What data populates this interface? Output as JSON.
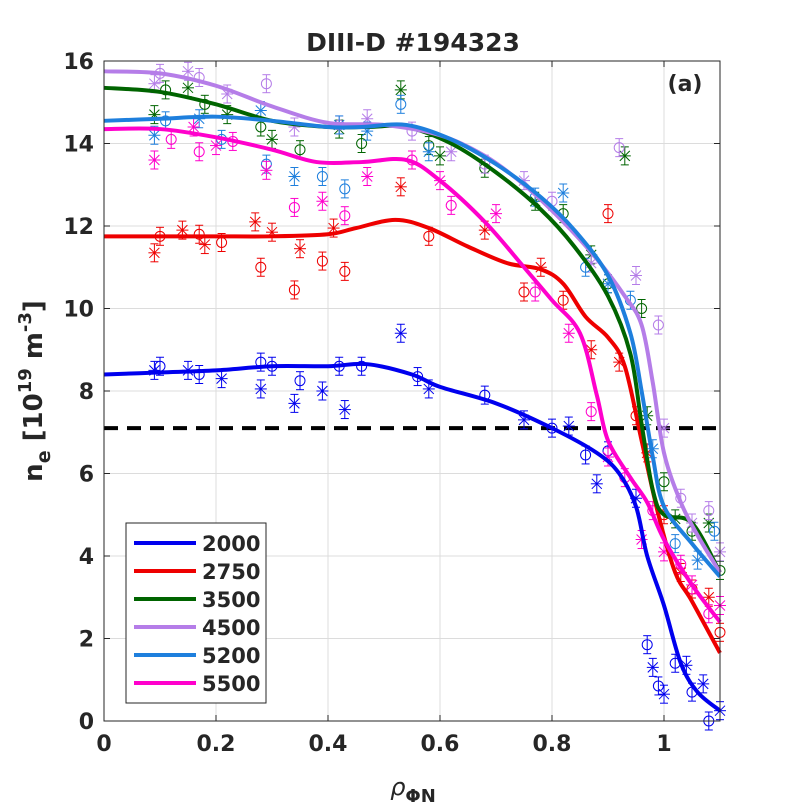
{
  "chart_data": {
    "type": "line",
    "title": "DIII-D #194323",
    "panel_label": "(a)",
    "xlabel": "ρ",
    "xlabel_sub": "ΦN",
    "ylabel": "n",
    "ylabel_sub": "e",
    "ylabel_units_pre": " [10",
    "ylabel_units_sup1": "19",
    "ylabel_units_mid": " m",
    "ylabel_units_sup2": "-3",
    "ylabel_units_post": "]",
    "xlim": [
      0,
      1.1
    ],
    "ylim": [
      0,
      16
    ],
    "xticks": [
      0,
      0.2,
      0.4,
      0.6,
      0.8,
      1
    ],
    "xtick_labels": [
      "0",
      "0.2",
      "0.4",
      "0.6",
      "0.8",
      "1"
    ],
    "yticks": [
      0,
      2,
      4,
      6,
      8,
      10,
      12,
      14,
      16
    ],
    "ytick_labels": [
      "0",
      "2",
      "4",
      "6",
      "8",
      "10",
      "12",
      "14",
      "16"
    ],
    "grid": true,
    "legend_position": "bottom-left",
    "reference_line": {
      "y": 7.1,
      "style": "dashed",
      "color": "#000000"
    },
    "series": [
      {
        "name": "2000",
        "color": "#0000ee",
        "x": [
          0,
          0.1,
          0.2,
          0.3,
          0.4,
          0.47,
          0.55,
          0.6,
          0.7,
          0.8,
          0.88,
          0.92,
          0.95,
          0.97,
          1.0,
          1.03,
          1.06,
          1.1
        ],
        "y": [
          8.4,
          8.45,
          8.5,
          8.6,
          8.6,
          8.65,
          8.4,
          8.1,
          7.7,
          7.1,
          6.5,
          6.0,
          5.2,
          4.0,
          2.8,
          1.4,
          0.7,
          0.25
        ],
        "points": [
          [
            0.09,
            8.5
          ],
          [
            0.1,
            8.6
          ],
          [
            0.15,
            8.5
          ],
          [
            0.17,
            8.4
          ],
          [
            0.21,
            8.3
          ],
          [
            0.28,
            8.7
          ],
          [
            0.28,
            8.05
          ],
          [
            0.3,
            8.6
          ],
          [
            0.34,
            7.7
          ],
          [
            0.35,
            8.25
          ],
          [
            0.39,
            8.0
          ],
          [
            0.42,
            8.6
          ],
          [
            0.43,
            7.55
          ],
          [
            0.46,
            8.6
          ],
          [
            0.53,
            9.4
          ],
          [
            0.56,
            8.35
          ],
          [
            0.58,
            8.05
          ],
          [
            0.68,
            7.9
          ],
          [
            0.75,
            7.3
          ],
          [
            0.8,
            7.1
          ],
          [
            0.83,
            7.15
          ],
          [
            0.86,
            6.45
          ],
          [
            0.88,
            5.75
          ],
          [
            0.9,
            6.55
          ],
          [
            0.95,
            5.4
          ],
          [
            0.97,
            1.85
          ],
          [
            0.98,
            1.3
          ],
          [
            0.99,
            0.85
          ],
          [
            1.0,
            0.65
          ],
          [
            1.02,
            1.4
          ],
          [
            1.04,
            1.35
          ],
          [
            1.05,
            0.7
          ],
          [
            1.07,
            0.9
          ],
          [
            1.08,
            0.0
          ],
          [
            1.1,
            0.25
          ]
        ]
      },
      {
        "name": "2750",
        "color": "#ee0000",
        "x": [
          0,
          0.1,
          0.2,
          0.3,
          0.4,
          0.45,
          0.52,
          0.58,
          0.65,
          0.72,
          0.78,
          0.82,
          0.86,
          0.9,
          0.93,
          0.96,
          0.99,
          1.02,
          1.05,
          1.1
        ],
        "y": [
          11.75,
          11.75,
          11.75,
          11.75,
          11.8,
          11.95,
          12.15,
          11.95,
          11.5,
          11.1,
          10.95,
          10.6,
          9.8,
          9.3,
          8.6,
          6.8,
          5.0,
          3.6,
          2.9,
          1.65
        ],
        "points": [
          [
            0.09,
            11.35
          ],
          [
            0.1,
            11.75
          ],
          [
            0.14,
            11.9
          ],
          [
            0.17,
            11.8
          ],
          [
            0.18,
            11.55
          ],
          [
            0.21,
            11.6
          ],
          [
            0.27,
            12.1
          ],
          [
            0.28,
            11.0
          ],
          [
            0.3,
            11.85
          ],
          [
            0.34,
            10.45
          ],
          [
            0.35,
            11.45
          ],
          [
            0.39,
            11.15
          ],
          [
            0.41,
            11.95
          ],
          [
            0.43,
            10.9
          ],
          [
            0.53,
            12.95
          ],
          [
            0.58,
            11.75
          ],
          [
            0.68,
            11.9
          ],
          [
            0.75,
            10.4
          ],
          [
            0.78,
            11.0
          ],
          [
            0.82,
            10.2
          ],
          [
            0.87,
            9.0
          ],
          [
            0.9,
            12.3
          ],
          [
            0.92,
            8.7
          ],
          [
            0.95,
            7.4
          ],
          [
            0.97,
            6.5
          ],
          [
            1.0,
            5.0
          ],
          [
            1.03,
            3.6
          ],
          [
            1.05,
            3.2
          ],
          [
            1.08,
            3.0
          ],
          [
            1.1,
            2.15
          ]
        ]
      },
      {
        "name": "3500",
        "color": "#006400",
        "x": [
          0,
          0.1,
          0.2,
          0.3,
          0.4,
          0.47,
          0.54,
          0.62,
          0.7,
          0.78,
          0.84,
          0.9,
          0.94,
          0.96,
          0.98,
          1.0,
          1.05,
          1.1
        ],
        "y": [
          15.35,
          15.25,
          14.95,
          14.55,
          14.4,
          14.4,
          14.4,
          14.0,
          13.3,
          12.4,
          11.5,
          10.3,
          8.9,
          7.2,
          5.6,
          5.0,
          4.8,
          3.6
        ],
        "points": [
          [
            0.09,
            14.7
          ],
          [
            0.11,
            15.3
          ],
          [
            0.15,
            15.35
          ],
          [
            0.18,
            14.95
          ],
          [
            0.22,
            14.7
          ],
          [
            0.28,
            14.4
          ],
          [
            0.3,
            14.1
          ],
          [
            0.35,
            13.85
          ],
          [
            0.42,
            14.35
          ],
          [
            0.46,
            14.0
          ],
          [
            0.53,
            15.3
          ],
          [
            0.58,
            13.95
          ],
          [
            0.6,
            13.7
          ],
          [
            0.68,
            13.4
          ],
          [
            0.77,
            12.6
          ],
          [
            0.82,
            12.3
          ],
          [
            0.87,
            11.3
          ],
          [
            0.9,
            10.6
          ],
          [
            0.93,
            13.7
          ],
          [
            0.96,
            10.0
          ],
          [
            0.97,
            7.4
          ],
          [
            1.0,
            5.8
          ],
          [
            1.02,
            4.9
          ],
          [
            1.05,
            4.6
          ],
          [
            1.08,
            4.8
          ],
          [
            1.1,
            3.65
          ]
        ]
      },
      {
        "name": "4500",
        "color": "#b57de8",
        "x": [
          0,
          0.1,
          0.2,
          0.3,
          0.4,
          0.5,
          0.6,
          0.68,
          0.75,
          0.82,
          0.88,
          0.93,
          0.96,
          0.98,
          1.0,
          1.03,
          1.06,
          1.1
        ],
        "y": [
          15.75,
          15.7,
          15.4,
          14.9,
          14.5,
          14.45,
          14.2,
          13.7,
          13.0,
          12.1,
          11.2,
          10.3,
          9.6,
          8.2,
          6.5,
          5.3,
          4.5,
          3.6
        ],
        "points": [
          [
            0.09,
            15.45
          ],
          [
            0.1,
            15.7
          ],
          [
            0.15,
            15.75
          ],
          [
            0.17,
            15.6
          ],
          [
            0.22,
            15.2
          ],
          [
            0.29,
            15.45
          ],
          [
            0.34,
            14.4
          ],
          [
            0.42,
            14.45
          ],
          [
            0.47,
            14.6
          ],
          [
            0.55,
            14.3
          ],
          [
            0.62,
            13.8
          ],
          [
            0.68,
            13.5
          ],
          [
            0.75,
            13.1
          ],
          [
            0.8,
            12.6
          ],
          [
            0.87,
            11.1
          ],
          [
            0.92,
            13.9
          ],
          [
            0.95,
            10.8
          ],
          [
            0.99,
            9.6
          ],
          [
            1.0,
            7.1
          ],
          [
            1.03,
            5.4
          ],
          [
            1.05,
            4.8
          ],
          [
            1.08,
            5.1
          ],
          [
            1.1,
            4.1
          ]
        ]
      },
      {
        "name": "5200",
        "color": "#1e7fdd",
        "x": [
          0,
          0.1,
          0.2,
          0.3,
          0.4,
          0.46,
          0.54,
          0.62,
          0.7,
          0.78,
          0.84,
          0.9,
          0.94,
          0.96,
          0.98,
          1.0,
          1.05,
          1.1
        ],
        "y": [
          14.55,
          14.6,
          14.65,
          14.55,
          14.4,
          14.4,
          14.45,
          14.1,
          13.5,
          12.7,
          11.9,
          10.8,
          9.4,
          8.0,
          6.4,
          5.2,
          4.3,
          3.5
        ],
        "points": [
          [
            0.09,
            14.2
          ],
          [
            0.11,
            14.55
          ],
          [
            0.17,
            14.6
          ],
          [
            0.21,
            14.1
          ],
          [
            0.28,
            14.8
          ],
          [
            0.29,
            13.5
          ],
          [
            0.34,
            13.2
          ],
          [
            0.39,
            13.2
          ],
          [
            0.42,
            14.45
          ],
          [
            0.43,
            12.9
          ],
          [
            0.47,
            14.3
          ],
          [
            0.53,
            14.95
          ],
          [
            0.58,
            13.8
          ],
          [
            0.77,
            12.7
          ],
          [
            0.82,
            12.8
          ],
          [
            0.86,
            11.0
          ],
          [
            0.9,
            10.6
          ],
          [
            0.94,
            10.2
          ],
          [
            0.98,
            6.6
          ],
          [
            1.02,
            4.3
          ],
          [
            1.06,
            3.9
          ],
          [
            1.09,
            4.6
          ]
        ]
      },
      {
        "name": "5500",
        "color": "#ff00cc",
        "x": [
          0,
          0.1,
          0.2,
          0.3,
          0.38,
          0.46,
          0.54,
          0.6,
          0.68,
          0.75,
          0.8,
          0.85,
          0.88,
          0.9,
          0.94,
          0.97,
          1.0,
          1.05,
          1.1
        ],
        "y": [
          14.35,
          14.35,
          14.15,
          13.85,
          13.55,
          13.55,
          13.6,
          13.1,
          12.1,
          11.0,
          10.2,
          9.4,
          7.9,
          6.8,
          5.9,
          5.3,
          4.4,
          3.3,
          2.4
        ],
        "points": [
          [
            0.09,
            13.6
          ],
          [
            0.12,
            14.1
          ],
          [
            0.16,
            14.4
          ],
          [
            0.17,
            13.8
          ],
          [
            0.2,
            13.95
          ],
          [
            0.23,
            14.05
          ],
          [
            0.29,
            13.35
          ],
          [
            0.34,
            12.45
          ],
          [
            0.39,
            12.6
          ],
          [
            0.43,
            12.25
          ],
          [
            0.47,
            13.2
          ],
          [
            0.55,
            13.6
          ],
          [
            0.6,
            13.1
          ],
          [
            0.62,
            12.5
          ],
          [
            0.7,
            12.3
          ],
          [
            0.77,
            10.4
          ],
          [
            0.83,
            9.4
          ],
          [
            0.87,
            7.5
          ],
          [
            0.9,
            6.4
          ],
          [
            0.93,
            5.9
          ],
          [
            0.96,
            4.4
          ],
          [
            0.98,
            5.1
          ],
          [
            1.0,
            4.1
          ],
          [
            1.03,
            3.8
          ],
          [
            1.05,
            3.3
          ],
          [
            1.08,
            2.6
          ],
          [
            1.1,
            2.8
          ]
        ]
      }
    ]
  }
}
